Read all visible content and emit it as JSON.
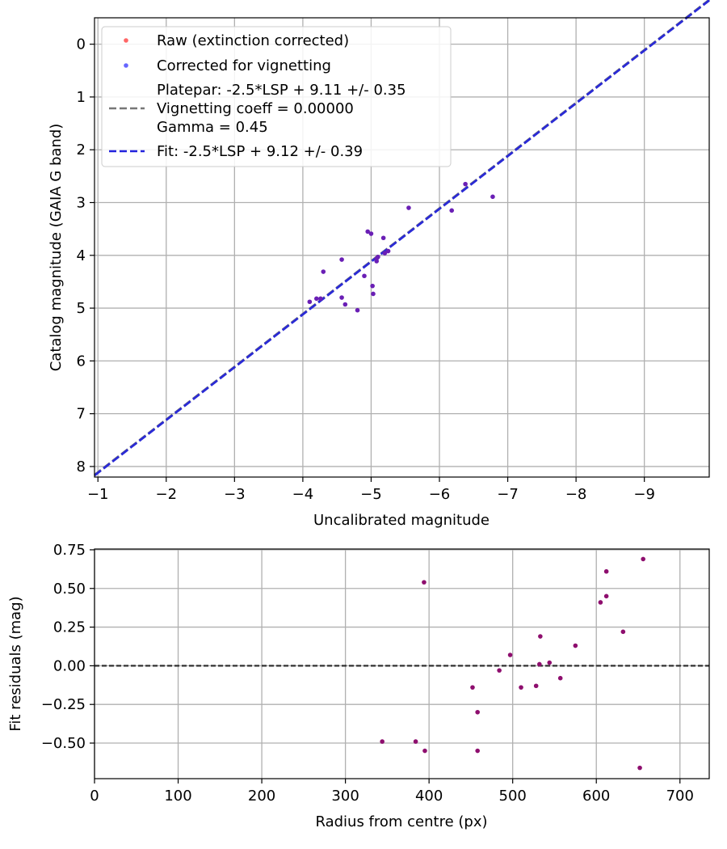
{
  "chart_data": [
    {
      "type": "scatter",
      "xlabel": "Uncalibrated magnitude",
      "ylabel": "Catalog magnitude (GAIA G band)",
      "xlim": [
        -0.95,
        -9.95
      ],
      "ylim": [
        8.2,
        -0.5
      ],
      "xticks": [
        -1,
        -2,
        -3,
        -4,
        -5,
        -6,
        -7,
        -8,
        -9
      ],
      "xtick_labels": [
        "−1",
        "−2",
        "−3",
        "−4",
        "−5",
        "−6",
        "−7",
        "−8",
        "−9"
      ],
      "yticks": [
        0,
        1,
        2,
        3,
        4,
        5,
        6,
        7,
        8
      ],
      "ytick_labels": [
        "0",
        "1",
        "2",
        "3",
        "4",
        "5",
        "6",
        "7",
        "8"
      ],
      "grid": true,
      "legend_position": "top-left",
      "legend": [
        {
          "label": "Raw (extinction corrected)",
          "kind": "dot",
          "color": "#ff0000"
        },
        {
          "label": "Corrected for vignetting",
          "kind": "dot",
          "color": "#0000ff"
        },
        {
          "label": "Platepar: -2.5*LSP + 9.11 +/- 0.35",
          "kind": "none"
        },
        {
          "label": "Vignetting coeff = 0.00000",
          "kind": "dash",
          "color": "#777777"
        },
        {
          "label": "Gamma = 0.45",
          "kind": "none"
        },
        {
          "label": "Fit: -2.5*LSP + 9.12 +/- 0.39",
          "kind": "dash",
          "color": "#2222dd"
        }
      ],
      "fit_line": {
        "slope": 1.0,
        "intercept": 9.12,
        "color": "#2a2ad6"
      },
      "platepar_line": {
        "slope": 1.0,
        "intercept": 9.11,
        "color": "#777777"
      },
      "point_color": "#6a1fb5",
      "points": [
        {
          "x": -6.38,
          "y": 2.65
        },
        {
          "x": -6.78,
          "y": 2.89
        },
        {
          "x": -5.55,
          "y": 3.1
        },
        {
          "x": -6.18,
          "y": 3.15
        },
        {
          "x": -4.95,
          "y": 3.55
        },
        {
          "x": -5.0,
          "y": 3.59
        },
        {
          "x": -5.18,
          "y": 3.67
        },
        {
          "x": -5.25,
          "y": 3.92
        },
        {
          "x": -5.2,
          "y": 3.96
        },
        {
          "x": -5.1,
          "y": 4.03
        },
        {
          "x": -5.08,
          "y": 4.06
        },
        {
          "x": -5.08,
          "y": 4.11
        },
        {
          "x": -4.57,
          "y": 4.08
        },
        {
          "x": -4.3,
          "y": 4.31
        },
        {
          "x": -4.9,
          "y": 4.39
        },
        {
          "x": -5.02,
          "y": 4.58
        },
        {
          "x": -5.03,
          "y": 4.73
        },
        {
          "x": -4.57,
          "y": 4.8
        },
        {
          "x": -4.2,
          "y": 4.82
        },
        {
          "x": -4.26,
          "y": 4.82
        },
        {
          "x": -4.1,
          "y": 4.88
        },
        {
          "x": -4.62,
          "y": 4.93
        },
        {
          "x": -4.8,
          "y": 5.04
        }
      ]
    },
    {
      "type": "scatter",
      "xlabel": "Radius from centre (px)",
      "ylabel": "Fit residuals (mag)",
      "xlim": [
        0,
        735
      ],
      "ylim": [
        -0.73,
        0.755
      ],
      "xticks": [
        0,
        100,
        200,
        300,
        400,
        500,
        600,
        700
      ],
      "xtick_labels": [
        "0",
        "100",
        "200",
        "300",
        "400",
        "500",
        "600",
        "700"
      ],
      "yticks": [
        0.75,
        0.5,
        0.25,
        0.0,
        -0.25,
        -0.5
      ],
      "ytick_labels": [
        "0.75",
        "0.50",
        "0.25",
        "0.00",
        "−0.25",
        "−0.50"
      ],
      "grid": true,
      "zero_line": 0,
      "point_color": "#8e0e6e",
      "points": [
        {
          "x": 344,
          "y": -0.49
        },
        {
          "x": 384,
          "y": -0.49
        },
        {
          "x": 395,
          "y": -0.55
        },
        {
          "x": 394,
          "y": 0.54
        },
        {
          "x": 452,
          "y": -0.14
        },
        {
          "x": 458,
          "y": -0.55
        },
        {
          "x": 458,
          "y": -0.3
        },
        {
          "x": 484,
          "y": -0.03
        },
        {
          "x": 497,
          "y": 0.07
        },
        {
          "x": 510,
          "y": -0.14
        },
        {
          "x": 528,
          "y": -0.13
        },
        {
          "x": 532,
          "y": 0.01
        },
        {
          "x": 533,
          "y": 0.19
        },
        {
          "x": 544,
          "y": 0.02
        },
        {
          "x": 557,
          "y": -0.08
        },
        {
          "x": 575,
          "y": 0.13
        },
        {
          "x": 605,
          "y": 0.41
        },
        {
          "x": 612,
          "y": 0.45
        },
        {
          "x": 612,
          "y": 0.61
        },
        {
          "x": 632,
          "y": 0.22
        },
        {
          "x": 652,
          "y": -0.66
        },
        {
          "x": 656,
          "y": 0.69
        }
      ]
    }
  ]
}
